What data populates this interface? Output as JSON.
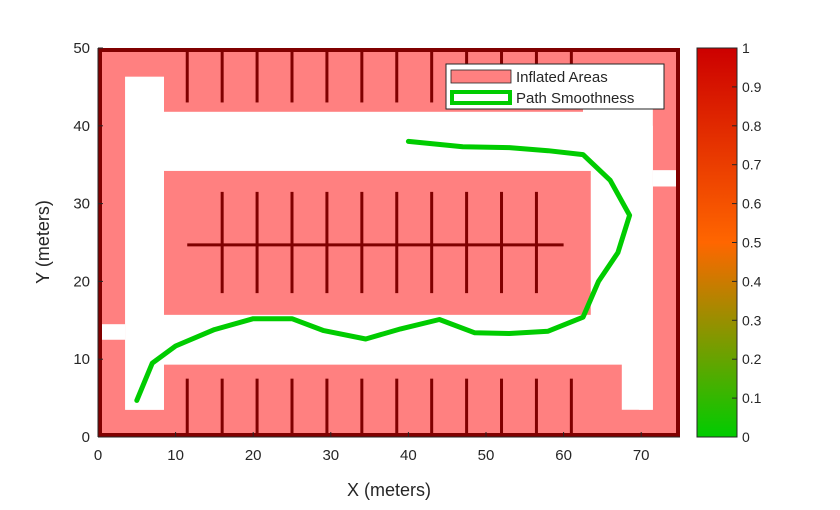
{
  "chart_data": {
    "type": "line",
    "xlabel": "X (meters)",
    "ylabel": "Y (meters)",
    "xlim": [
      0,
      75
    ],
    "ylim": [
      0,
      50
    ],
    "x_ticks": [
      "0",
      "10",
      "20",
      "30",
      "40",
      "50",
      "60",
      "70"
    ],
    "y_ticks": [
      "0",
      "10",
      "20",
      "30",
      "40",
      "50"
    ],
    "grid": false,
    "legend": {
      "placement": "top-right",
      "entries": [
        "Inflated Areas",
        "Path Smoothness"
      ]
    },
    "series": [
      {
        "name": "Path Smoothness",
        "color": "#00cc00",
        "points": [
          [
            5,
            4.7
          ],
          [
            7,
            9.5
          ],
          [
            10,
            11.7
          ],
          [
            15,
            13.8
          ],
          [
            20,
            15.2
          ],
          [
            25,
            15.2
          ],
          [
            29,
            13.7
          ],
          [
            34.5,
            12.6
          ],
          [
            39,
            13.9
          ],
          [
            44,
            15.1
          ],
          [
            48.5,
            13.4
          ],
          [
            53,
            13.3
          ],
          [
            58,
            13.6
          ],
          [
            62.5,
            15.4
          ],
          [
            64.5,
            20
          ],
          [
            67,
            23.7
          ],
          [
            68.5,
            28.5
          ],
          [
            66,
            33
          ],
          [
            62.5,
            36.3
          ],
          [
            58,
            36.8
          ],
          [
            53,
            37.2
          ],
          [
            47,
            37.3
          ],
          [
            40,
            38
          ]
        ]
      }
    ],
    "inflated_areas": {
      "name": "Inflated Areas",
      "color": "#ff8080",
      "regions": [
        {
          "x": [
            0,
            75
          ],
          "y": [
            46.3,
            50
          ]
        },
        {
          "x": [
            0,
            3.5
          ],
          "y": [
            0,
            50
          ]
        },
        {
          "x": [
            71.5,
            75
          ],
          "y": [
            0,
            50
          ]
        },
        {
          "x": [
            0,
            75
          ],
          "y": [
            0,
            3.5
          ]
        },
        {
          "x": [
            8.5,
            62.5
          ],
          "y": [
            41.8,
            50
          ]
        },
        {
          "x": [
            8.5,
            67.5
          ],
          "y": [
            0,
            9.3
          ]
        },
        {
          "x": [
            8.5,
            63.5
          ],
          "y": [
            15.7,
            34.2
          ]
        }
      ],
      "cleared_regions": [
        {
          "x": [
            3.5,
            8.5
          ],
          "y": [
            3.5,
            46.3
          ]
        },
        {
          "x": [
            0,
            3.5
          ],
          "y": [
            14.5,
            12.5
          ]
        },
        {
          "x": [
            71.5,
            75
          ],
          "y": [
            34.3,
            32.2
          ]
        },
        {
          "x": [
            69.7,
            71.5
          ],
          "y": [
            3.5,
            40
          ]
        }
      ]
    },
    "obstacles": {
      "color": "#800000",
      "vertical_lines": [
        {
          "xs": [
            11.5,
            16,
            20.5,
            25,
            29.5,
            34,
            38.5,
            43,
            47.5,
            52,
            56.5,
            61
          ],
          "y": [
            43,
            50
          ]
        },
        {
          "xs": [
            11.5,
            16,
            20.5,
            25,
            29.5,
            34,
            38.5,
            43,
            47.5,
            52,
            56.5,
            61
          ],
          "y": [
            0,
            7.5
          ]
        },
        {
          "xs": [
            16,
            20.5,
            25,
            29.5,
            34,
            38.5,
            43,
            47.5,
            52,
            56.5
          ],
          "y": [
            18.5,
            31.5
          ]
        }
      ],
      "horizontal_lines": [
        {
          "x": [
            11.5,
            60
          ],
          "y": 24.7
        }
      ],
      "border": {
        "x": [
          0,
          75
        ],
        "y": [
          0,
          50
        ]
      }
    },
    "colorbar": {
      "ticks": [
        "0",
        "0.1",
        "0.2",
        "0.3",
        "0.4",
        "0.5",
        "0.6",
        "0.7",
        "0.8",
        "0.9",
        "1"
      ],
      "range": [
        0,
        1
      ],
      "colors": [
        "#00cc00",
        "#ff6600",
        "#cc0000"
      ]
    }
  }
}
